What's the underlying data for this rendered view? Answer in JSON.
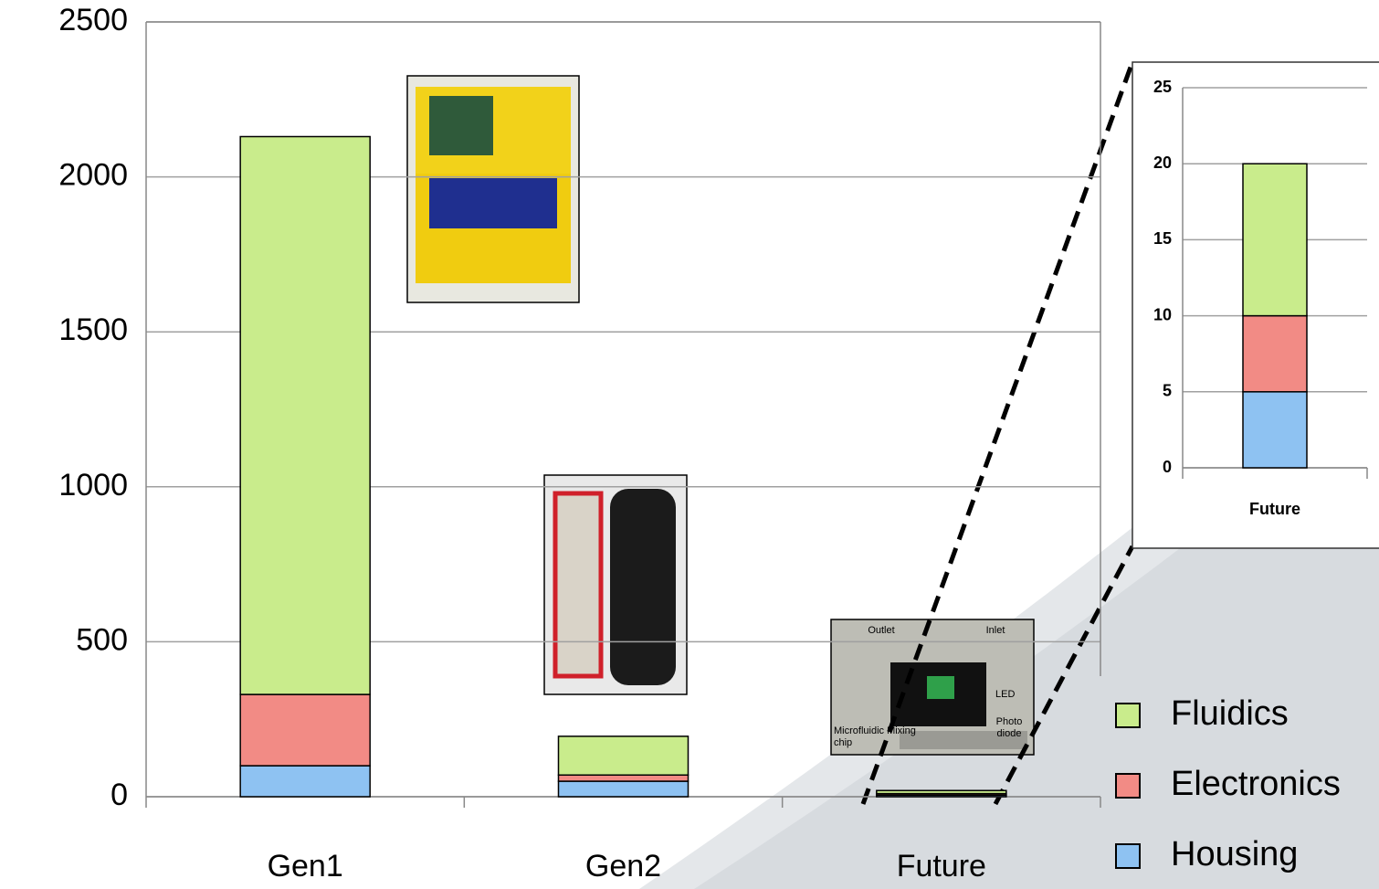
{
  "chart_data": [
    {
      "type": "bar",
      "stacked": true,
      "categories": [
        "Gen1",
        "Gen2",
        "Future"
      ],
      "series": [
        {
          "name": "Housing",
          "color": "#8ec2f2",
          "values": [
            100,
            50,
            5
          ]
        },
        {
          "name": "Electronics",
          "color": "#f28b85",
          "values": [
            230,
            20,
            5
          ]
        },
        {
          "name": "Fluidics",
          "color": "#c9ec8c",
          "values": [
            1800,
            125,
            10
          ]
        }
      ],
      "ylim": [
        0,
        2500
      ],
      "yticks": [
        0,
        500,
        1000,
        1500,
        2000,
        2500
      ],
      "grid": true,
      "legend": "right",
      "annotations": [
        "Outlet",
        "Inlet",
        "LED",
        "Photo diode",
        "Microfluidic Mixing chip"
      ]
    },
    {
      "type": "bar",
      "stacked": true,
      "categories": [
        "Future"
      ],
      "series": [
        {
          "color": "#8ec2f2",
          "values": [
            5
          ]
        },
        {
          "color": "#f28b85",
          "values": [
            5
          ]
        },
        {
          "color": "#c9ec8c",
          "values": [
            10
          ]
        }
      ],
      "ylim": [
        0,
        25
      ],
      "yticks": [
        0,
        5,
        10,
        15,
        20,
        25
      ],
      "grid": true
    }
  ]
}
